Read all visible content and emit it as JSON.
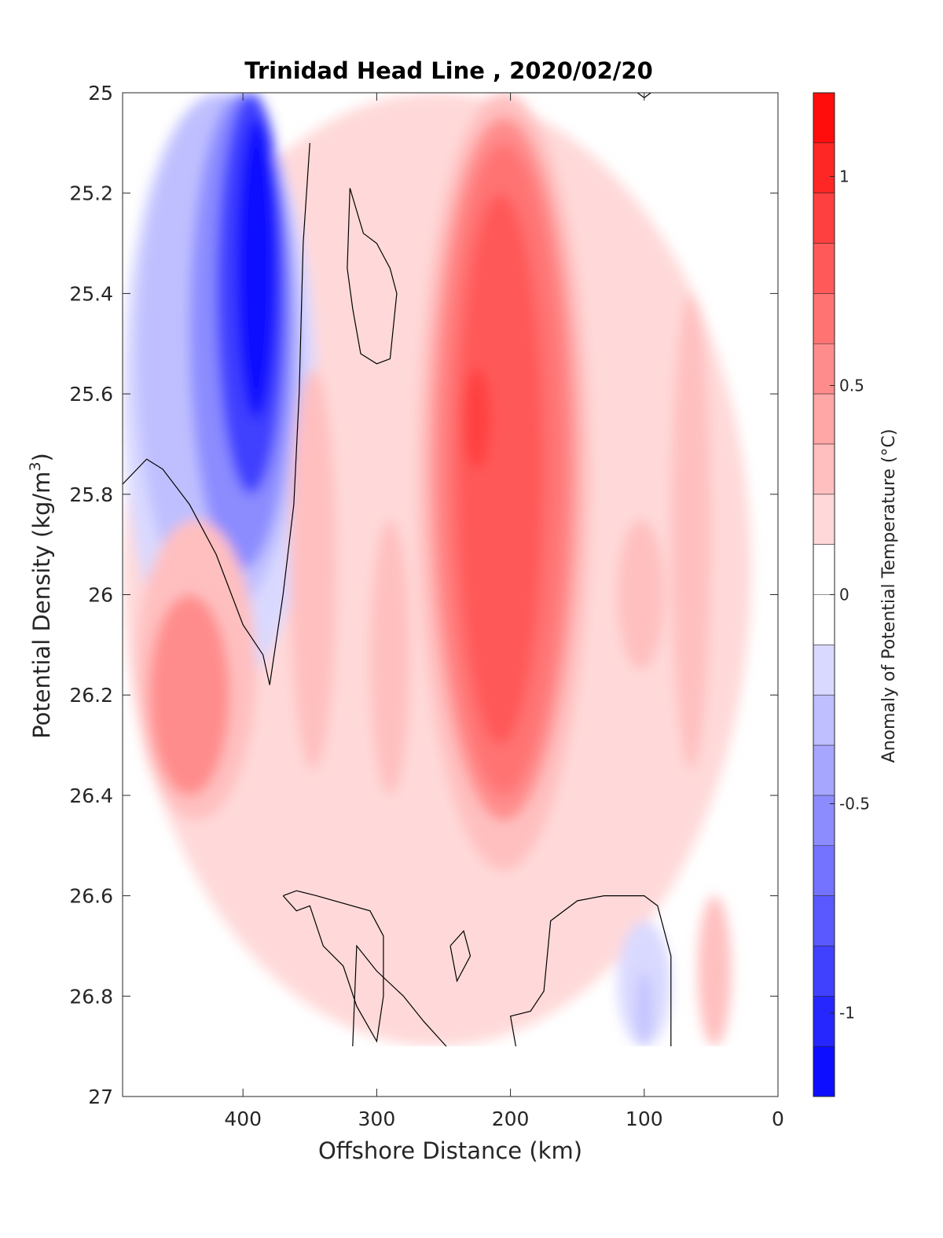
{
  "chart_data": {
    "type": "heatmap",
    "title": "Trinidad Head Line , 2020/02/20",
    "xlabel": "Offshore Distance (km)",
    "ylabel_main": "Potential Density (kg/m",
    "ylabel_sup": "3",
    "ylabel_close": ")",
    "colorbar_label": "Anomaly of Potential Temperature (°C)",
    "x_reversed": true,
    "y_reversed": true,
    "xlim": [
      0,
      490
    ],
    "ylim": [
      25,
      27
    ],
    "x_ticks": [
      400,
      300,
      200,
      100,
      0
    ],
    "x_tick_labels": [
      "400",
      "300",
      "200",
      "100",
      "0"
    ],
    "y_ticks": [
      25,
      25.2,
      25.4,
      25.6,
      25.8,
      26,
      26.2,
      26.4,
      26.6,
      26.8,
      27
    ],
    "y_tick_labels": [
      "25",
      "25.2",
      "25.4",
      "25.6",
      "25.8",
      "26",
      "26.2",
      "26.4",
      "26.6",
      "26.8",
      "27"
    ],
    "colorbar_range": [
      -1.2,
      1.2
    ],
    "colorbar_ticks": [
      1,
      0.5,
      0,
      -0.5,
      -1
    ],
    "colorbar_tick_labels": [
      "1",
      "0.5",
      "0",
      "-0.5",
      "-1"
    ],
    "data_bottom_density": 26.9,
    "anomaly_regions": [
      {
        "value": 0.15,
        "x": [
          490,
          20
        ],
        "y": [
          25.0,
          26.9
        ]
      },
      {
        "value": -0.15,
        "x": [
          490,
          345
        ],
        "y": [
          25.0,
          26.2
        ]
      },
      {
        "value": -0.35,
        "x": [
          480,
          355
        ],
        "y": [
          25.0,
          26.05
        ]
      },
      {
        "value": -0.6,
        "x": [
          440,
          362
        ],
        "y": [
          25.0,
          25.95
        ]
      },
      {
        "value": -0.85,
        "x": [
          420,
          368
        ],
        "y": [
          25.0,
          25.8
        ]
      },
      {
        "value": -1.1,
        "x": [
          405,
          375
        ],
        "y": [
          25.05,
          25.65
        ]
      },
      {
        "value": 0.35,
        "x": [
          480,
          390
        ],
        "y": [
          25.85,
          26.45
        ]
      },
      {
        "value": 0.5,
        "x": [
          470,
          410
        ],
        "y": [
          26.0,
          26.4
        ]
      },
      {
        "value": 0.35,
        "x": [
          365,
          330
        ],
        "y": [
          25.55,
          26.35
        ]
      },
      {
        "value": 0.35,
        "x": [
          305,
          275
        ],
        "y": [
          25.85,
          26.4
        ]
      },
      {
        "value": 0.35,
        "x": [
          270,
          140
        ],
        "y": [
          25.0,
          26.55
        ]
      },
      {
        "value": 0.5,
        "x": [
          260,
          150
        ],
        "y": [
          25.05,
          26.45
        ]
      },
      {
        "value": 0.65,
        "x": [
          250,
          160
        ],
        "y": [
          25.1,
          26.4
        ]
      },
      {
        "value": 0.8,
        "x": [
          240,
          175
        ],
        "y": [
          25.2,
          26.3
        ]
      },
      {
        "value": 0.95,
        "x": [
          235,
          215
        ],
        "y": [
          25.55,
          25.75
        ]
      },
      {
        "value": 0.35,
        "x": [
          120,
          85
        ],
        "y": [
          25.85,
          26.15
        ]
      },
      {
        "value": 0.35,
        "x": [
          80,
          50
        ],
        "y": [
          25.4,
          26.35
        ]
      },
      {
        "value": 0.35,
        "x": [
          60,
          35
        ],
        "y": [
          26.6,
          26.9
        ]
      },
      {
        "value": -0.15,
        "x": [
          120,
          80
        ],
        "y": [
          26.65,
          26.9
        ]
      },
      {
        "value": -0.35,
        "x": [
          105,
          95
        ],
        "y": [
          26.75,
          26.9
        ]
      }
    ],
    "zero_contours": [
      [
        [
          490,
          25.78
        ],
        [
          472,
          25.73
        ],
        [
          460,
          25.75
        ],
        [
          440,
          25.82
        ],
        [
          420,
          25.92
        ],
        [
          400,
          26.06
        ],
        [
          385,
          26.12
        ],
        [
          380,
          26.18
        ],
        [
          370,
          26.0
        ],
        [
          362,
          25.82
        ],
        [
          358,
          25.6
        ],
        [
          355,
          25.3
        ],
        [
          350,
          25.1
        ]
      ],
      [
        [
          320,
          25.19
        ],
        [
          310,
          25.28
        ],
        [
          300,
          25.3
        ],
        [
          290,
          25.35
        ],
        [
          285,
          25.4
        ],
        [
          290,
          25.53
        ],
        [
          300,
          25.54
        ],
        [
          312,
          25.52
        ],
        [
          318,
          25.43
        ],
        [
          322,
          25.35
        ],
        [
          320,
          25.19
        ]
      ],
      [
        [
          370,
          26.6
        ],
        [
          360,
          26.63
        ],
        [
          350,
          26.62
        ],
        [
          340,
          26.7
        ],
        [
          325,
          26.74
        ],
        [
          315,
          26.82
        ],
        [
          300,
          26.89
        ],
        [
          295,
          26.8
        ],
        [
          295,
          26.68
        ],
        [
          305,
          26.63
        ],
        [
          345,
          26.6
        ],
        [
          360,
          26.59
        ],
        [
          370,
          26.6
        ]
      ],
      [
        [
          318,
          26.9
        ],
        [
          315,
          26.7
        ],
        [
          300,
          26.75
        ],
        [
          280,
          26.8
        ],
        [
          265,
          26.85
        ],
        [
          248,
          26.9
        ]
      ],
      [
        [
          245,
          26.7
        ],
        [
          235,
          26.67
        ],
        [
          230,
          26.72
        ],
        [
          240,
          26.77
        ],
        [
          245,
          26.7
        ]
      ],
      [
        [
          196,
          26.9
        ],
        [
          200,
          26.84
        ],
        [
          185,
          26.83
        ],
        [
          175,
          26.79
        ],
        [
          170,
          26.65
        ],
        [
          150,
          26.61
        ],
        [
          130,
          26.6
        ],
        [
          100,
          26.6
        ],
        [
          90,
          26.62
        ],
        [
          85,
          26.67
        ],
        [
          80,
          26.72
        ],
        [
          80,
          26.9
        ]
      ],
      [
        [
          95,
          25.0
        ],
        [
          100,
          25.01
        ],
        [
          105,
          25.0
        ]
      ]
    ]
  }
}
